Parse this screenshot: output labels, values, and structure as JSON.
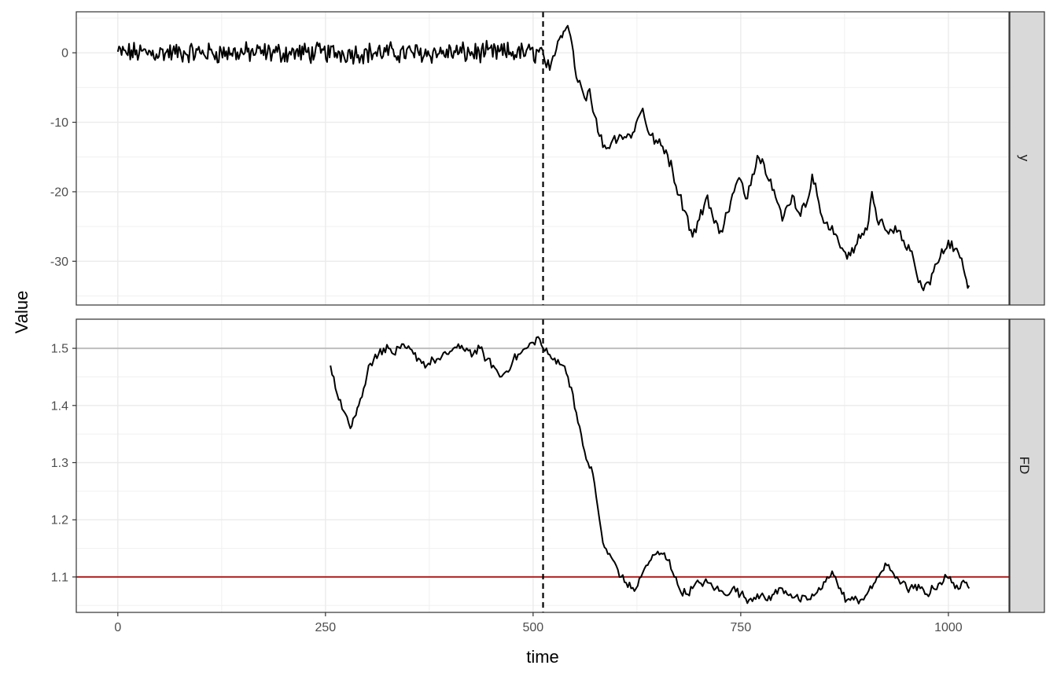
{
  "chart_data": {
    "type": "line",
    "xlabel": "time",
    "ylabel": "Value",
    "xlim": [
      -50,
      1073
    ],
    "x_ticks": [
      0,
      250,
      500,
      750,
      1000
    ],
    "vline": {
      "x": 512,
      "style": "dashed",
      "color": "#000000"
    },
    "panels": [
      {
        "strip_label": "y",
        "ylim": [
          -36.3,
          5.9
        ],
        "y_ticks": [
          0,
          -10,
          -20,
          -30
        ],
        "y_tick_labels": [
          "0",
          "-10",
          "-20",
          "-30"
        ],
        "series": [
          {
            "color": "#000000",
            "segment": [
              0,
              512
            ],
            "mean": 0,
            "noise_amplitude": 1.2
          },
          {
            "color": "#000000",
            "points": [
              [
                512,
                0
              ],
              [
                520,
                -2.5
              ],
              [
                528,
                0.5
              ],
              [
                535,
                2.2
              ],
              [
                540,
                3.6
              ],
              [
                545,
                2.4
              ],
              [
                550,
                -2
              ],
              [
                556,
                -4
              ],
              [
                562,
                -6.5
              ],
              [
                568,
                -5.2
              ],
              [
                574,
                -9
              ],
              [
                580,
                -12
              ],
              [
                588,
                -13.8
              ],
              [
                596,
                -12.5
              ],
              [
                604,
                -11.8
              ],
              [
                612,
                -12.2
              ],
              [
                620,
                -11.5
              ],
              [
                628,
                -9
              ],
              [
                632,
                -8
              ],
              [
                640,
                -11.8
              ],
              [
                650,
                -13
              ],
              [
                660,
                -14
              ],
              [
                668,
                -17
              ],
              [
                676,
                -20.5
              ],
              [
                684,
                -23
              ],
              [
                692,
                -26.5
              ],
              [
                700,
                -24
              ],
              [
                710,
                -20.5
              ],
              [
                718,
                -24.5
              ],
              [
                726,
                -25.6
              ],
              [
                734,
                -23
              ],
              [
                742,
                -20
              ],
              [
                748,
                -18
              ],
              [
                756,
                -21
              ],
              [
                764,
                -17.5
              ],
              [
                770,
                -14.8
              ],
              [
                778,
                -16
              ],
              [
                786,
                -18.2
              ],
              [
                794,
                -21.5
              ],
              [
                800,
                -24.2
              ],
              [
                806,
                -22
              ],
              [
                812,
                -20.5
              ],
              [
                820,
                -23
              ],
              [
                828,
                -22.2
              ],
              [
                836,
                -17.5
              ],
              [
                842,
                -20.5
              ],
              [
                850,
                -24.5
              ],
              [
                858,
                -25.5
              ],
              [
                866,
                -26.4
              ],
              [
                874,
                -28.5
              ],
              [
                882,
                -29.2
              ],
              [
                890,
                -27.5
              ],
              [
                896,
                -26
              ],
              [
                902,
                -25.5
              ],
              [
                908,
                -20
              ],
              [
                914,
                -24
              ],
              [
                922,
                -24.8
              ],
              [
                930,
                -25.4
              ],
              [
                938,
                -25.8
              ],
              [
                946,
                -27
              ],
              [
                954,
                -28.5
              ],
              [
                962,
                -32
              ],
              [
                970,
                -34.2
              ],
              [
                976,
                -33
              ],
              [
                982,
                -31.5
              ],
              [
                990,
                -29.5
              ],
              [
                1000,
                -27
              ],
              [
                1008,
                -28.2
              ],
              [
                1014,
                -29.5
              ],
              [
                1020,
                -32
              ],
              [
                1025,
                -33.5
              ]
            ]
          }
        ]
      },
      {
        "strip_label": "FD",
        "ylim": [
          1.038,
          1.551
        ],
        "y_ticks": [
          1.1,
          1.2,
          1.3,
          1.4,
          1.5
        ],
        "y_tick_labels": [
          "1.1",
          "1.2",
          "1.3",
          "1.4",
          "1.5"
        ],
        "hlines": [
          {
            "y": 1.5,
            "color": "#bebebe"
          },
          {
            "y": 1.1,
            "color": "#b22222"
          }
        ],
        "series": [
          {
            "color": "#000000",
            "points": [
              [
                256,
                1.47
              ],
              [
                260,
                1.45
              ],
              [
                264,
                1.42
              ],
              [
                268,
                1.41
              ],
              [
                272,
                1.39
              ],
              [
                276,
                1.38
              ],
              [
                280,
                1.36
              ],
              [
                285,
                1.38
              ],
              [
                290,
                1.4
              ],
              [
                296,
                1.43
              ],
              [
                302,
                1.47
              ],
              [
                308,
                1.48
              ],
              [
                314,
                1.49
              ],
              [
                320,
                1.5
              ],
              [
                326,
                1.5
              ],
              [
                332,
                1.49
              ],
              [
                340,
                1.5
              ],
              [
                348,
                1.5
              ],
              [
                356,
                1.49
              ],
              [
                364,
                1.48
              ],
              [
                372,
                1.47
              ],
              [
                380,
                1.48
              ],
              [
                388,
                1.48
              ],
              [
                396,
                1.49
              ],
              [
                404,
                1.5
              ],
              [
                412,
                1.5
              ],
              [
                420,
                1.5
              ],
              [
                428,
                1.49
              ],
              [
                436,
                1.5
              ],
              [
                444,
                1.48
              ],
              [
                452,
                1.47
              ],
              [
                460,
                1.45
              ],
              [
                468,
                1.46
              ],
              [
                476,
                1.48
              ],
              [
                484,
                1.49
              ],
              [
                492,
                1.5
              ],
              [
                500,
                1.51
              ],
              [
                506,
                1.52
              ],
              [
                512,
                1.5
              ],
              [
                518,
                1.49
              ],
              [
                524,
                1.48
              ],
              [
                530,
                1.48
              ],
              [
                536,
                1.47
              ],
              [
                542,
                1.45
              ],
              [
                548,
                1.42
              ],
              [
                554,
                1.37
              ],
              [
                560,
                1.33
              ],
              [
                566,
                1.3
              ],
              [
                572,
                1.28
              ],
              [
                576,
                1.24
              ],
              [
                580,
                1.2
              ],
              [
                584,
                1.16
              ],
              [
                590,
                1.14
              ],
              [
                596,
                1.13
              ],
              [
                600,
                1.12
              ],
              [
                606,
                1.1
              ],
              [
                612,
                1.09
              ],
              [
                618,
                1.08
              ],
              [
                624,
                1.08
              ],
              [
                630,
                1.1
              ],
              [
                636,
                1.12
              ],
              [
                642,
                1.13
              ],
              [
                648,
                1.14
              ],
              [
                656,
                1.14
              ],
              [
                664,
                1.13
              ],
              [
                670,
                1.1
              ],
              [
                676,
                1.08
              ],
              [
                684,
                1.07
              ],
              [
                692,
                1.08
              ],
              [
                700,
                1.09
              ],
              [
                710,
                1.09
              ],
              [
                720,
                1.08
              ],
              [
                730,
                1.07
              ],
              [
                740,
                1.08
              ],
              [
                750,
                1.07
              ],
              [
                760,
                1.06
              ],
              [
                770,
                1.07
              ],
              [
                780,
                1.06
              ],
              [
                790,
                1.07
              ],
              [
                800,
                1.08
              ],
              [
                810,
                1.07
              ],
              [
                820,
                1.06
              ],
              [
                830,
                1.06
              ],
              [
                840,
                1.07
              ],
              [
                848,
                1.08
              ],
              [
                854,
                1.1
              ],
              [
                860,
                1.11
              ],
              [
                866,
                1.09
              ],
              [
                872,
                1.07
              ],
              [
                878,
                1.06
              ],
              [
                886,
                1.06
              ],
              [
                894,
                1.06
              ],
              [
                902,
                1.07
              ],
              [
                908,
                1.08
              ],
              [
                914,
                1.1
              ],
              [
                920,
                1.11
              ],
              [
                926,
                1.12
              ],
              [
                932,
                1.11
              ],
              [
                938,
                1.1
              ],
              [
                944,
                1.09
              ],
              [
                950,
                1.08
              ],
              [
                958,
                1.08
              ],
              [
                966,
                1.08
              ],
              [
                974,
                1.07
              ],
              [
                982,
                1.08
              ],
              [
                990,
                1.09
              ],
              [
                998,
                1.1
              ],
              [
                1006,
                1.09
              ],
              [
                1014,
                1.08
              ],
              [
                1020,
                1.09
              ],
              [
                1025,
                1.08
              ]
            ]
          }
        ]
      }
    ]
  }
}
